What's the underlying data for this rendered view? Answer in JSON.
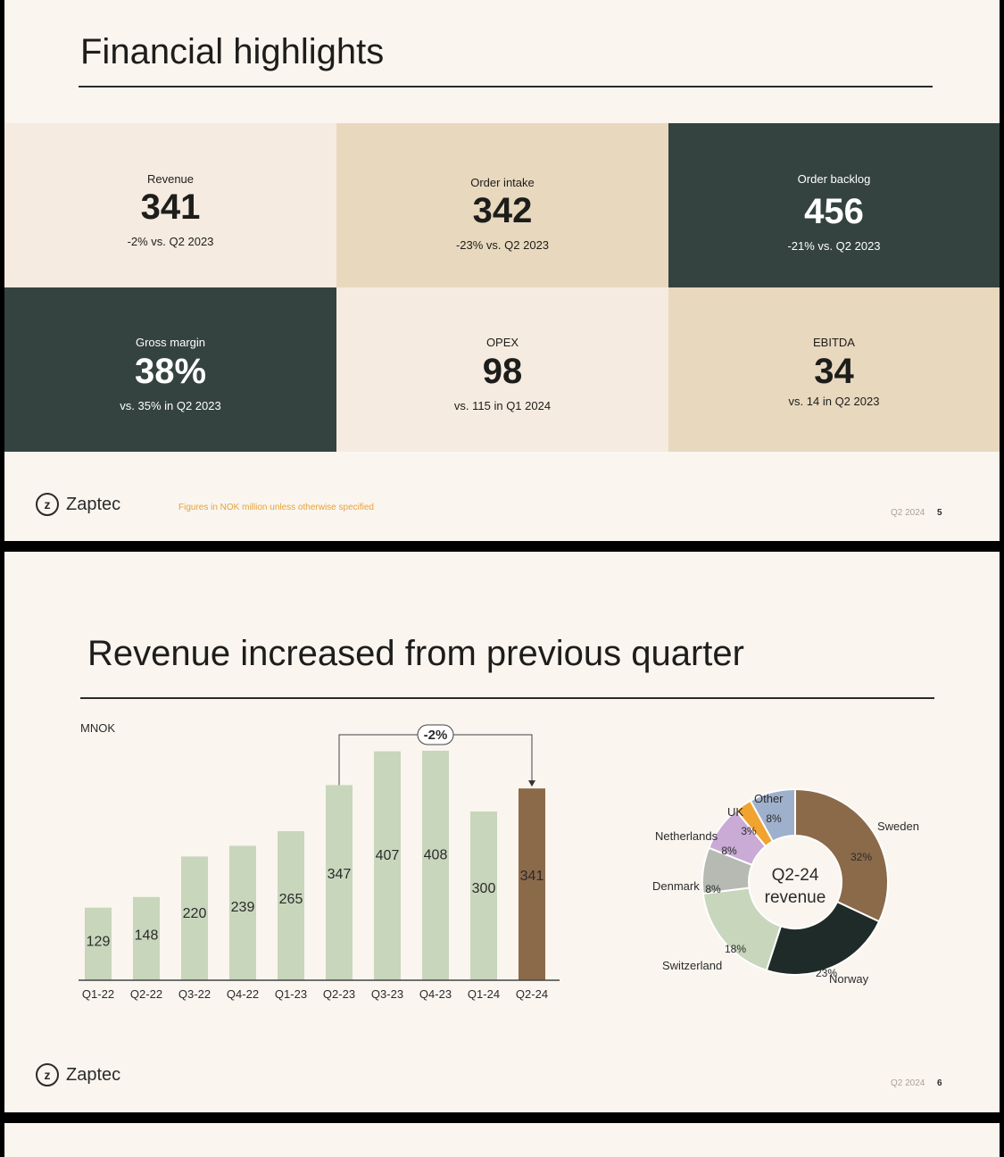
{
  "slide1": {
    "title": "Financial highlights",
    "tiles": [
      {
        "label": "Revenue",
        "value": "341",
        "sub": "-2% vs. Q2 2023"
      },
      {
        "label": "Order intake",
        "value": "342",
        "sub": "-23% vs. Q2 2023"
      },
      {
        "label": "Order backlog",
        "value": "456",
        "sub": "-21% vs. Q2 2023"
      },
      {
        "label": "Gross margin",
        "value": "38%",
        "sub": "vs. 35% in Q2 2023"
      },
      {
        "label": "OPEX",
        "value": "98",
        "sub": "vs. 115 in Q1 2024"
      },
      {
        "label": "EBITDA",
        "value": "34",
        "sub": "vs. 14 in Q2 2023"
      }
    ],
    "logo_text": "Zaptec",
    "logo_icon": "zaptec-logo-icon",
    "footnote": "Figures in NOK million unless otherwise specified",
    "period": "Q2 2024",
    "page": "5",
    "colors": {
      "light": "#f5ebe0",
      "sand": "#e8d8be",
      "dark": "#34433f"
    }
  },
  "slide2": {
    "title": "Revenue increased from previous quarter",
    "logo_text": "Zaptec",
    "period": "Q2 2024",
    "page": "6"
  },
  "chart_data": [
    {
      "type": "bar",
      "unit_label": "MNOK",
      "categories": [
        "Q1-22",
        "Q2-22",
        "Q3-22",
        "Q4-22",
        "Q1-23",
        "Q2-23",
        "Q3-23",
        "Q4-23",
        "Q1-24",
        "Q2-24"
      ],
      "values": [
        129,
        148,
        220,
        239,
        265,
        347,
        407,
        408,
        300,
        341
      ],
      "highlight_index": 9,
      "colors": {
        "bar": "#c8d6bc",
        "highlight": "#8b6a4a"
      },
      "annotation": {
        "text": "-2%",
        "from": "Q2-23",
        "to": "Q2-24"
      },
      "ylim": [
        0,
        430
      ]
    },
    {
      "type": "pie",
      "variant": "donut",
      "center_label": [
        "Q2-24",
        "revenue"
      ],
      "slices": [
        {
          "label": "Sweden",
          "value": 32,
          "pct": "32%",
          "color": "#8b6a4a"
        },
        {
          "label": "Norway",
          "value": 23,
          "pct": "23%",
          "color": "#1f2b28"
        },
        {
          "label": "Switzerland",
          "value": 18,
          "pct": "18%",
          "color": "#c8d6bc"
        },
        {
          "label": "Denmark",
          "value": 8,
          "pct": "8%",
          "color": "#b6bab3"
        },
        {
          "label": "Netherlands",
          "value": 8,
          "pct": "8%",
          "color": "#c9abd6"
        },
        {
          "label": "UK",
          "value": 3,
          "pct": "3%",
          "color": "#f1a32f"
        },
        {
          "label": "Other",
          "value": 8,
          "pct": "8%",
          "color": "#9fb0cc"
        }
      ]
    }
  ]
}
